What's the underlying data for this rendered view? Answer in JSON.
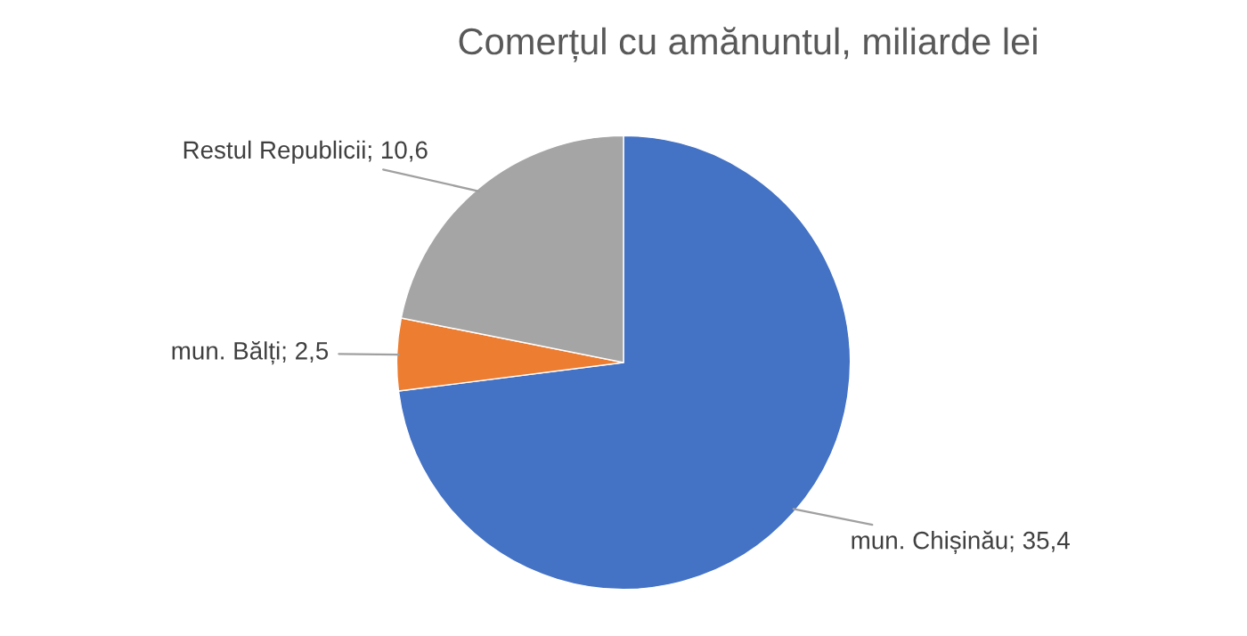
{
  "chart_data": {
    "type": "pie",
    "title": "Comerțul cu amănuntul, miliarde lei",
    "categories": [
      "mun. Chișinău",
      "mun. Bălți",
      "Restul Republicii"
    ],
    "values": [
      35.4,
      2.5,
      10.6
    ],
    "value_labels": [
      "35,4",
      "2,5",
      "10,6"
    ],
    "colors": [
      "#4472c4",
      "#ed7d31",
      "#a5a5a5"
    ]
  }
}
